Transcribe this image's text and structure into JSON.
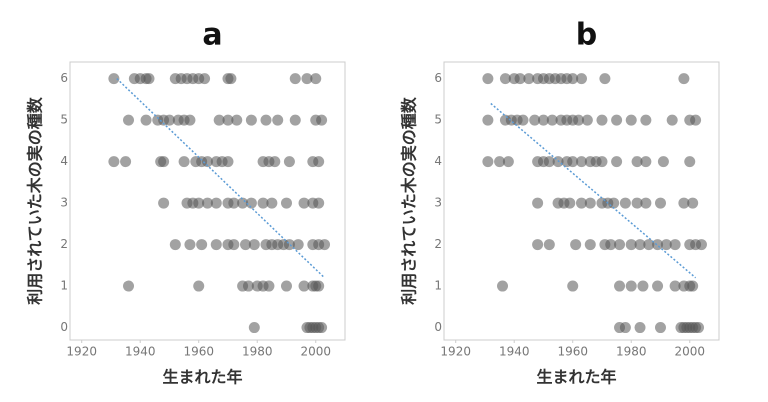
{
  "chart_data": [
    {
      "type": "scatter",
      "title": "a",
      "x_label": "生まれた年",
      "y_label": "利用されていた木の実の種数",
      "color": "#555555",
      "x": [
        1931,
        1938,
        1940,
        1942,
        1943,
        1952,
        1954,
        1956,
        1958,
        1960,
        1962,
        1970,
        1971,
        1993,
        1997,
        2000,
        1936,
        1942,
        1946,
        1948,
        1950,
        1953,
        1955,
        1957,
        1967,
        1970,
        1973,
        1978,
        1983,
        1987,
        1993,
        2000,
        2002,
        1931,
        1935,
        1947,
        1948,
        1955,
        1959,
        1961,
        1963,
        1966,
        1968,
        1970,
        1982,
        1984,
        1986,
        1991,
        1999,
        2001,
        1948,
        1956,
        1958,
        1960,
        1963,
        1966,
        1970,
        1972,
        1975,
        1978,
        1982,
        1985,
        1990,
        1996,
        1999,
        2001,
        1952,
        1957,
        1961,
        1966,
        1970,
        1972,
        1976,
        1979,
        1983,
        1985,
        1987,
        1989,
        1991,
        1994,
        1999,
        2001,
        2003,
        1936,
        1960,
        1975,
        1977,
        1980,
        1982,
        1984,
        1990,
        1996,
        1999,
        2000,
        2001,
        1979,
        1997,
        1998,
        1999,
        2000,
        2001,
        2002
      ],
      "values": [
        6,
        6,
        6,
        6,
        6,
        6,
        6,
        6,
        6,
        6,
        6,
        6,
        6,
        6,
        6,
        6,
        5,
        5,
        5,
        5,
        5,
        5,
        5,
        5,
        5,
        5,
        5,
        5,
        5,
        5,
        5,
        5,
        5,
        4,
        4,
        4,
        4,
        4,
        4,
        4,
        4,
        4,
        4,
        4,
        4,
        4,
        4,
        4,
        4,
        4,
        3,
        3,
        3,
        3,
        3,
        3,
        3,
        3,
        3,
        3,
        3,
        3,
        3,
        3,
        3,
        3,
        2,
        2,
        2,
        2,
        2,
        2,
        2,
        2,
        2,
        2,
        2,
        2,
        2,
        2,
        2,
        2,
        2,
        1,
        1,
        1,
        1,
        1,
        1,
        1,
        1,
        1,
        1,
        1,
        1,
        0,
        0,
        0,
        0,
        0,
        0,
        0
      ],
      "trend": {
        "x": [
          1932,
          2003
        ],
        "values": [
          6,
          1.2
        ],
        "color": "#5b9bd5"
      },
      "xlim": [
        1916,
        2010
      ],
      "xticks": [
        1920,
        1940,
        1960,
        1980,
        2000
      ],
      "ylim": [
        -0.3,
        6.4
      ],
      "yticks": [
        0,
        1,
        2,
        3,
        4,
        5,
        6
      ]
    },
    {
      "type": "scatter",
      "title": "b",
      "x_label": "生まれた年",
      "y_label": "利用されていた木の実の種数",
      "color": "#555555",
      "x": [
        1931,
        1937,
        1940,
        1942,
        1945,
        1948,
        1950,
        1952,
        1954,
        1956,
        1958,
        1960,
        1963,
        1971,
        1998,
        1931,
        1937,
        1939,
        1941,
        1943,
        1947,
        1950,
        1953,
        1956,
        1958,
        1960,
        1962,
        1965,
        1970,
        1975,
        1980,
        1985,
        1994,
        2000,
        2002,
        1931,
        1935,
        1938,
        1948,
        1950,
        1952,
        1955,
        1958,
        1960,
        1963,
        1966,
        1968,
        1970,
        1975,
        1982,
        1985,
        1991,
        2000,
        1948,
        1955,
        1957,
        1959,
        1963,
        1966,
        1970,
        1972,
        1974,
        1978,
        1982,
        1985,
        1990,
        1998,
        2001,
        1948,
        1952,
        1961,
        1966,
        1971,
        1973,
        1976,
        1980,
        1983,
        1986,
        1989,
        1992,
        1995,
        2000,
        2002,
        2004,
        1936,
        1960,
        1976,
        1980,
        1984,
        1989,
        1995,
        1998,
        2000,
        2001,
        1976,
        1978,
        1983,
        1990,
        1997,
        1998,
        1999,
        2000,
        2001,
        2002,
        2003
      ],
      "values": [
        6,
        6,
        6,
        6,
        6,
        6,
        6,
        6,
        6,
        6,
        6,
        6,
        6,
        6,
        6,
        5,
        5,
        5,
        5,
        5,
        5,
        5,
        5,
        5,
        5,
        5,
        5,
        5,
        5,
        5,
        5,
        5,
        5,
        5,
        5,
        4,
        4,
        4,
        4,
        4,
        4,
        4,
        4,
        4,
        4,
        4,
        4,
        4,
        4,
        4,
        4,
        4,
        4,
        3,
        3,
        3,
        3,
        3,
        3,
        3,
        3,
        3,
        3,
        3,
        3,
        3,
        3,
        3,
        2,
        2,
        2,
        2,
        2,
        2,
        2,
        2,
        2,
        2,
        2,
        2,
        2,
        2,
        2,
        2,
        1,
        1,
        1,
        1,
        1,
        1,
        1,
        1,
        1,
        1,
        0,
        0,
        0,
        0,
        0,
        0,
        0,
        0,
        0,
        0,
        0
      ],
      "trend": {
        "x": [
          1932,
          2002
        ],
        "values": [
          5.4,
          1.2
        ],
        "color": "#5b9bd5"
      },
      "xlim": [
        1916,
        2010
      ],
      "xticks": [
        1920,
        1940,
        1960,
        1980,
        2000
      ],
      "ylim": [
        -0.3,
        6.4
      ],
      "yticks": [
        0,
        1,
        2,
        3,
        4,
        5,
        6
      ]
    }
  ]
}
